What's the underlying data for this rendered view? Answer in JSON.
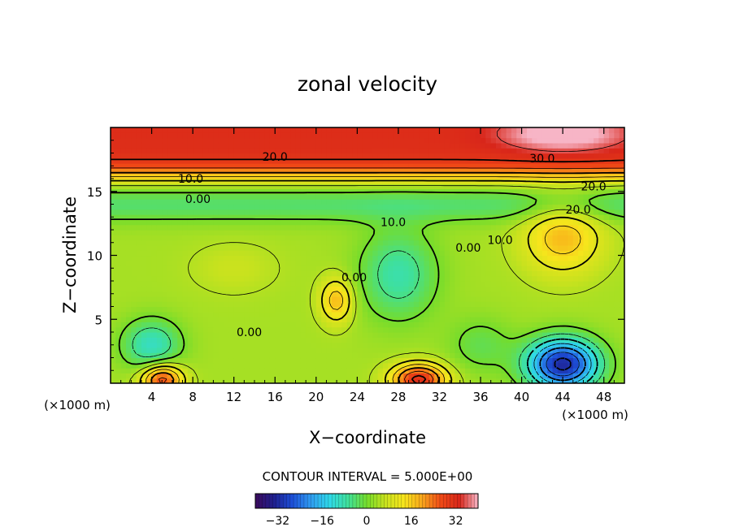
{
  "chart_data": {
    "type": "heatmap",
    "title": "zonal velocity",
    "xlabel": "X−coordinate",
    "ylabel": "Z−coordinate",
    "x_unit_left": "(×1000 m)",
    "x_unit_right": "(×1000 m)",
    "xlim": [
      0,
      50
    ],
    "ylim": [
      0,
      20
    ],
    "x_ticks": [
      {
        "value": 4,
        "label": "4"
      },
      {
        "value": 8,
        "label": "8"
      },
      {
        "value": 12,
        "label": "12"
      },
      {
        "value": 16,
        "label": "16"
      },
      {
        "value": 20,
        "label": "20"
      },
      {
        "value": 24,
        "label": "24"
      },
      {
        "value": 28,
        "label": "28"
      },
      {
        "value": 32,
        "label": "32"
      },
      {
        "value": 36,
        "label": "36"
      },
      {
        "value": 40,
        "label": "40"
      },
      {
        "value": 44,
        "label": "44"
      },
      {
        "value": 48,
        "label": "48"
      }
    ],
    "y_ticks": [
      {
        "value": 5,
        "label": "5"
      },
      {
        "value": 10,
        "label": "10"
      },
      {
        "value": 15,
        "label": "15"
      }
    ],
    "contour_interval_text": "CONTOUR INTERVAL = 5.000E+00",
    "colorbar": {
      "range": [
        -40,
        40
      ],
      "ticks": [
        {
          "value": -32,
          "label": "−32"
        },
        {
          "value": -16,
          "label": "−16"
        },
        {
          "value": 0,
          "label": "0"
        },
        {
          "value": 16,
          "label": "16"
        },
        {
          "value": 32,
          "label": "32"
        }
      ],
      "colors": [
        "#3a0a5c",
        "#20208f",
        "#1c4fd8",
        "#2f9cf0",
        "#2fd9e8",
        "#3fe09a",
        "#74dc2c",
        "#c8e21e",
        "#f7e51c",
        "#f8a51b",
        "#f04a16",
        "#d8261a",
        "#f7b5c6"
      ]
    },
    "contour_labels": [
      {
        "text": "20.0",
        "x": 16.0,
        "y": 17.7
      },
      {
        "text": "30.0",
        "x": 42.0,
        "y": 17.6
      },
      {
        "text": "10.0",
        "x": 7.8,
        "y": 16.0
      },
      {
        "text": "20.0",
        "x": 47.0,
        "y": 15.4
      },
      {
        "text": "20.0",
        "x": 45.5,
        "y": 13.6
      },
      {
        "text": "0.00",
        "x": 8.5,
        "y": 14.4
      },
      {
        "text": "10.0",
        "x": 27.5,
        "y": 12.6
      },
      {
        "text": "0.00",
        "x": 34.8,
        "y": 10.6
      },
      {
        "text": "10.0",
        "x": 37.9,
        "y": 11.2
      },
      {
        "text": "0.00",
        "x": 23.7,
        "y": 8.3
      },
      {
        "text": "0.00",
        "x": 13.5,
        "y": 4.0
      }
    ],
    "features": [
      {
        "kind": "jet",
        "description_value": 25,
        "x": 25,
        "y": 18.5,
        "sx": 40,
        "sy": 1.4
      },
      {
        "kind": "max",
        "value": 40,
        "x": 44,
        "y": 19.5
      },
      {
        "kind": "max",
        "value": 20,
        "x": 44,
        "y": 11.5
      },
      {
        "kind": "max",
        "value": 20,
        "x": 22,
        "y": 6.5
      },
      {
        "kind": "max",
        "value": 25,
        "x": 5,
        "y": 0.3
      },
      {
        "kind": "max",
        "value": 30,
        "x": 30,
        "y": 0.3
      },
      {
        "kind": "min",
        "value": -30,
        "x": 44,
        "y": 1.5
      },
      {
        "kind": "min",
        "value": -10,
        "x": 4,
        "y": 3
      },
      {
        "kind": "min",
        "value": -8,
        "x": 28,
        "y": 9.5
      }
    ]
  }
}
